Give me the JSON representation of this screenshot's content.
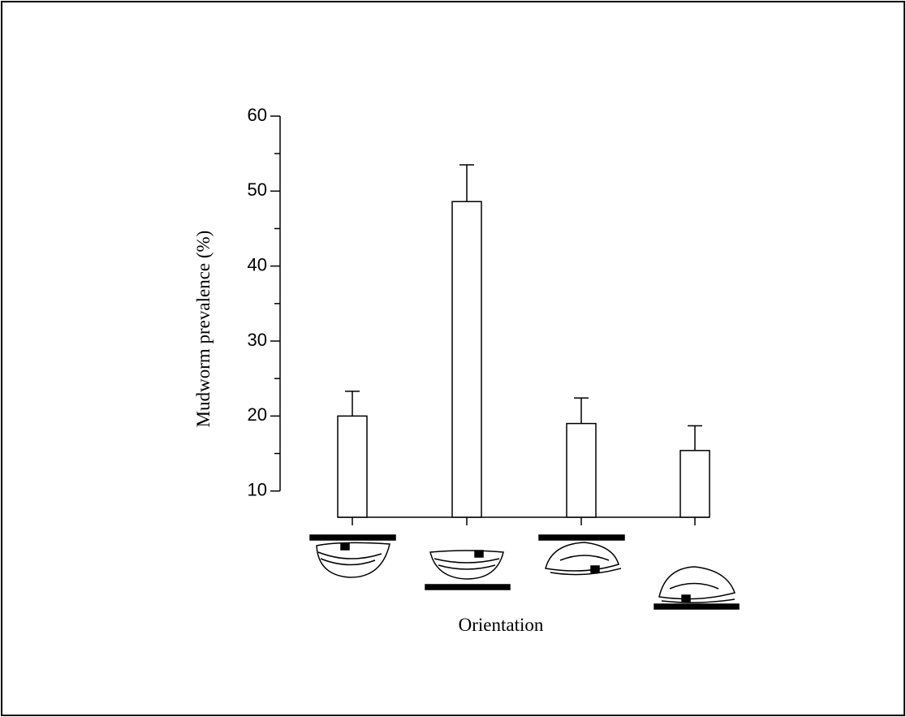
{
  "chart_data": {
    "type": "bar",
    "x_label": "Orientation",
    "y_label": "Mudworm prevalence (%)",
    "categories": [
      null,
      null,
      null,
      null
    ],
    "values": [
      20.0,
      48.6,
      19.0,
      15.4
    ],
    "errors": [
      3.3,
      4.9,
      3.4,
      3.3
    ],
    "color": "#ffffff",
    "ylim": [
      6.5,
      60
    ],
    "yticks": [
      10,
      20,
      30,
      40,
      50,
      60
    ],
    "yminorticks": [
      15,
      25,
      35,
      45,
      55
    ],
    "grid": false
  }
}
